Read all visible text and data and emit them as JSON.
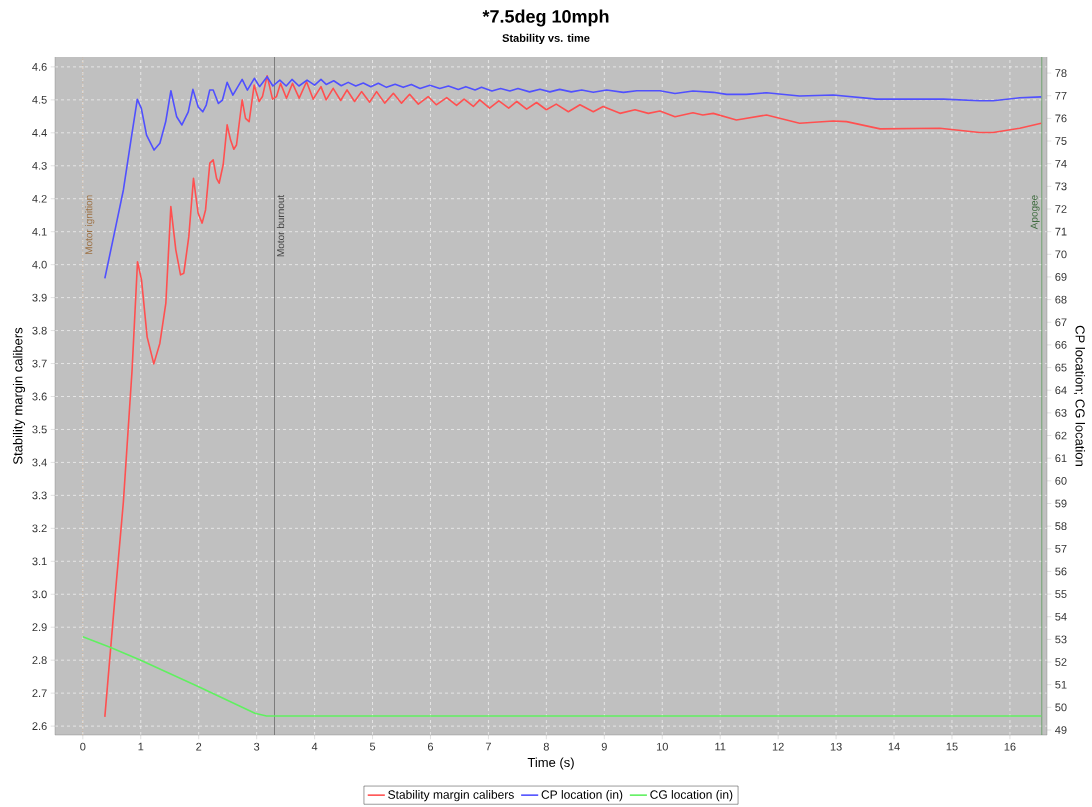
{
  "chart_data": {
    "type": "line",
    "title": "*7.5deg 10mph",
    "subtitle": "Stability vs. time",
    "xlabel": "Time (s)",
    "ylabel": "Stability margin calibers",
    "y2label": "CP location; CG location",
    "xlim": [
      -0.48,
      16.64
    ],
    "xticks": [
      0,
      1,
      2,
      3,
      4,
      5,
      6,
      7,
      8,
      9,
      10,
      11,
      12,
      13,
      14,
      15,
      16
    ],
    "ylim": [
      2.573,
      4.63
    ],
    "yticks": [
      2.6,
      2.7,
      2.8,
      2.9,
      {
        "value": 3.0,
        "label": "3.0"
      },
      3.1,
      3.2,
      3.3,
      3.4,
      3.5,
      3.6,
      3.7,
      3.8,
      3.9,
      {
        "value": 4.0,
        "label": "4.0"
      },
      4.1,
      4.2,
      4.3,
      4.4,
      4.5,
      4.6
    ],
    "y2lim": [
      48.78,
      78.71
    ],
    "y2ticks": [
      49,
      50,
      51,
      52,
      53,
      54,
      55,
      56,
      57,
      58,
      59,
      60,
      61,
      62,
      63,
      64,
      65,
      66,
      67,
      68,
      69,
      70,
      71,
      72,
      73,
      74,
      75,
      76,
      77,
      78
    ],
    "grid": true,
    "legend": "bottom",
    "ref_lines": [
      {
        "axis": "x",
        "value": 0,
        "label": "Motor ignition",
        "color": "#e0a060",
        "line_style": "dotted"
      },
      {
        "axis": "x",
        "value": 3.31,
        "label": "Motor burnout",
        "color": "#606060",
        "line_style": "solid"
      },
      {
        "axis": "x",
        "value": 16.55,
        "label": "Apogee",
        "color": "#5a9a5a",
        "line_style": "solid"
      }
    ],
    "series": [
      {
        "name": "Stability margin calibers",
        "color": "#ff5050",
        "axis": "y",
        "x": [
          0.38,
          0.55,
          0.7,
          0.85,
          0.944,
          1.013,
          1.11,
          1.225,
          1.329,
          1.433,
          1.519,
          1.605,
          1.686,
          1.743,
          1.829,
          1.91,
          1.99,
          2.059,
          2.118,
          2.192,
          2.25,
          2.308,
          2.353,
          2.422,
          2.491,
          2.55,
          2.606,
          2.652,
          2.75,
          2.808,
          2.87,
          2.957,
          3.043,
          3.1,
          3.181,
          3.274,
          3.343,
          3.412,
          3.515,
          3.619,
          3.734,
          3.861,
          3.976,
          4.11,
          4.2,
          4.32,
          4.45,
          4.56,
          4.69,
          4.81,
          4.95,
          5.07,
          5.21,
          5.36,
          5.5,
          5.64,
          5.79,
          5.96,
          6.1,
          6.28,
          6.45,
          6.58,
          6.74,
          6.85,
          7.02,
          7.18,
          7.35,
          7.49,
          7.66,
          7.83,
          8.0,
          8.17,
          8.38,
          8.58,
          8.81,
          8.98,
          9.27,
          9.53,
          9.76,
          9.96,
          10.22,
          10.53,
          10.7,
          10.88,
          11.28,
          11.8,
          12.37,
          12.95,
          13.18,
          13.76,
          14.79,
          15.48,
          15.71,
          16.17,
          16.54
        ],
        "values": [
          2.628,
          2.98,
          3.28,
          3.68,
          4.009,
          3.954,
          3.781,
          3.699,
          3.761,
          3.883,
          4.176,
          4.045,
          3.969,
          3.974,
          4.085,
          4.262,
          4.156,
          4.126,
          4.166,
          4.308,
          4.318,
          4.262,
          4.247,
          4.303,
          4.424,
          4.378,
          4.35,
          4.363,
          4.5,
          4.444,
          4.434,
          4.545,
          4.495,
          4.51,
          4.573,
          4.502,
          4.51,
          4.55,
          4.505,
          4.55,
          4.505,
          4.555,
          4.502,
          4.54,
          4.5,
          4.535,
          4.498,
          4.53,
          4.495,
          4.525,
          4.493,
          4.525,
          4.49,
          4.52,
          4.49,
          4.517,
          4.487,
          4.51,
          4.485,
          4.507,
          4.483,
          4.502,
          4.48,
          4.5,
          4.475,
          4.497,
          4.475,
          4.495,
          4.472,
          4.492,
          4.47,
          4.487,
          4.464,
          4.485,
          4.464,
          4.48,
          4.459,
          4.47,
          4.459,
          4.466,
          4.449,
          4.461,
          4.454,
          4.459,
          4.439,
          4.454,
          4.429,
          4.436,
          4.434,
          4.412,
          4.414,
          4.401,
          4.401,
          4.414,
          4.429
        ]
      },
      {
        "name": "CP location (in)",
        "color": "#5050ff",
        "axis": "y2",
        "x": [
          0.38,
          0.55,
          0.7,
          0.84,
          0.94,
          1.01,
          1.1,
          1.23,
          1.33,
          1.43,
          1.52,
          1.62,
          1.71,
          1.82,
          1.9,
          1.99,
          2.07,
          2.13,
          2.19,
          2.25,
          2.34,
          2.41,
          2.49,
          2.59,
          2.75,
          2.84,
          2.96,
          3.05,
          3.18,
          3.28,
          3.4,
          3.51,
          3.61,
          3.73,
          3.87,
          4.0,
          4.11,
          4.2,
          4.33,
          4.46,
          4.58,
          4.71,
          4.84,
          4.97,
          5.1,
          5.24,
          5.39,
          5.53,
          5.67,
          5.82,
          5.99,
          6.16,
          6.31,
          6.48,
          6.61,
          6.77,
          6.88,
          7.06,
          7.21,
          7.37,
          7.51,
          7.71,
          7.89,
          8.06,
          8.23,
          8.43,
          8.61,
          8.81,
          9.04,
          9.33,
          9.56,
          9.96,
          10.22,
          10.53,
          10.88,
          11.11,
          11.45,
          11.8,
          12.37,
          12.95,
          13.7,
          14.85,
          15.48,
          15.71,
          16.17,
          16.54
        ],
        "values": [
          68.94,
          71.0,
          72.84,
          75.19,
          76.84,
          76.44,
          75.26,
          74.6,
          74.9,
          75.85,
          77.22,
          76.07,
          75.71,
          76.29,
          77.28,
          76.51,
          76.29,
          76.59,
          77.25,
          77.25,
          76.66,
          76.81,
          77.59,
          77.03,
          77.72,
          77.25,
          77.77,
          77.4,
          77.84,
          77.43,
          77.69,
          77.43,
          77.72,
          77.43,
          77.69,
          77.47,
          77.72,
          77.5,
          77.66,
          77.44,
          77.59,
          77.43,
          77.56,
          77.4,
          77.55,
          77.37,
          77.51,
          77.37,
          77.5,
          77.32,
          77.46,
          77.32,
          77.43,
          77.28,
          77.4,
          77.25,
          77.37,
          77.21,
          77.32,
          77.21,
          77.32,
          77.17,
          77.29,
          77.17,
          77.28,
          77.17,
          77.25,
          77.15,
          77.25,
          77.15,
          77.22,
          77.22,
          77.1,
          77.21,
          77.15,
          77.06,
          77.06,
          77.13,
          76.99,
          77.03,
          76.85,
          76.85,
          76.78,
          76.78,
          76.91,
          76.95
        ]
      },
      {
        "name": "CG location (in)",
        "color": "#60f060",
        "axis": "y2",
        "x": [
          0.0,
          0.47,
          0.98,
          1.99,
          2.97,
          3.17,
          16.54
        ],
        "values": [
          53.12,
          52.65,
          52.1,
          50.92,
          49.74,
          49.62,
          49.62
        ]
      }
    ]
  }
}
